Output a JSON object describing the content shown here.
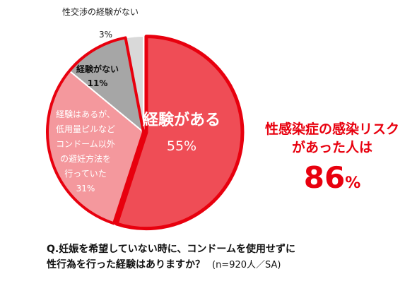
{
  "chart_data": {
    "type": "pie",
    "slices": [
      {
        "label": "経験がある",
        "value": 55,
        "value_label": "55%",
        "color": "#ef4d56"
      },
      {
        "label": "経験はあるが、低用量ピルなどコンドーム以外の避妊方法を行っていた",
        "value": 31,
        "value_label": "31%",
        "color": "#f4989d"
      },
      {
        "label": "経験がない",
        "value": 11,
        "value_label": "11%",
        "color": "#a6a6a6"
      },
      {
        "label": "性交渉の経験がない",
        "value": 3,
        "value_label": "3%",
        "color": "#d9d9d9"
      }
    ],
    "highlight_color": "#e8000e"
  },
  "labels": {
    "has": "経験がある",
    "has_pct": "55%",
    "other_lines": [
      "経験はあるが、",
      "低用量ピルなど",
      "コンドーム以外",
      "の避妊方法を",
      "行っていた"
    ],
    "other_pct": "31%",
    "nothas": "経験がない",
    "nothas_pct": "11%",
    "none": "性交渉の経験がない",
    "none_pct": "3%"
  },
  "callout": {
    "line1": "性感染症の感染リスク",
    "line2": "があった人は",
    "value": "86",
    "unit": "%"
  },
  "question": {
    "line1": "Q.妊娠を希望していない時に、コンドームを使用せずに",
    "line2": "性行為を行った経験はありますか？",
    "note": "(n=920人／SA)"
  }
}
